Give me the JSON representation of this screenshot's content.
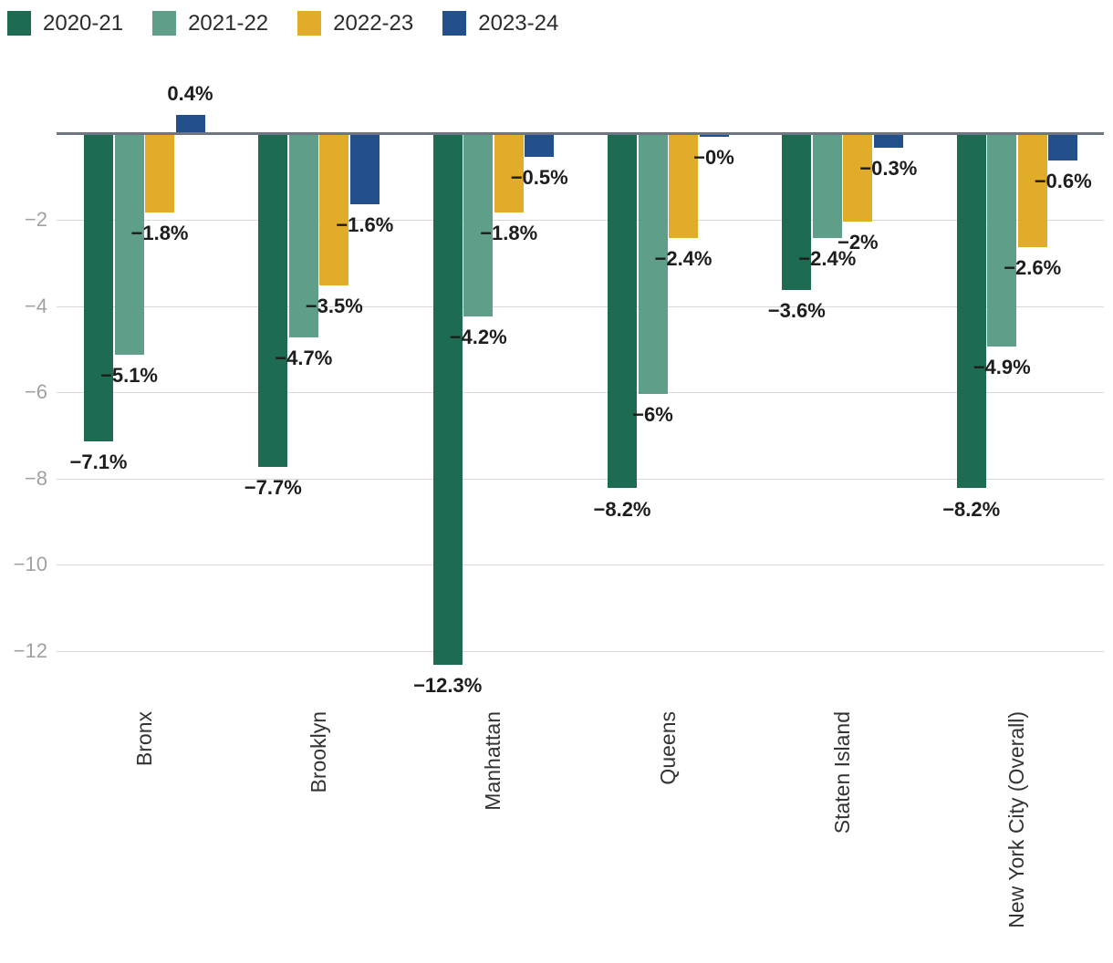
{
  "legend": {
    "items": [
      {
        "label": "2020-21",
        "color": "#1d6b52"
      },
      {
        "label": "2021-22",
        "color": "#5f9e88"
      },
      {
        "label": "2022-23",
        "color": "#e0ac29"
      },
      {
        "label": "2023-24",
        "color": "#23508b"
      }
    ]
  },
  "chart_data": {
    "type": "bar",
    "title": "",
    "xlabel": "",
    "ylabel": "",
    "categories": [
      "Bronx",
      "Brooklyn",
      "Manhattan",
      "Queens",
      "Staten Island",
      "New York City (Overall)"
    ],
    "series": [
      {
        "name": "2020-21",
        "color": "#1d6b52",
        "values": [
          -7.1,
          -7.7,
          -12.3,
          -8.2,
          -3.6,
          -8.2
        ],
        "labels": [
          "−7.1%",
          "−7.7%",
          "−12.3%",
          "−8.2%",
          "−3.6%",
          "−8.2%"
        ]
      },
      {
        "name": "2021-22",
        "color": "#5f9e88",
        "values": [
          -5.1,
          -4.7,
          -4.2,
          -6.0,
          -2.4,
          -4.9
        ],
        "labels": [
          "−5.1%",
          "−4.7%",
          "−4.2%",
          "−6%",
          "−2.4%",
          "−4.9%"
        ]
      },
      {
        "name": "2022-23",
        "color": "#e0ac29",
        "values": [
          -1.8,
          -3.5,
          -1.8,
          -2.4,
          -2.0,
          -2.6
        ],
        "labels": [
          "−1.8%",
          "−3.5%",
          "−1.8%",
          "−2.4%",
          "−2%",
          "−2.6%"
        ]
      },
      {
        "name": "2023-24",
        "color": "#23508b",
        "values": [
          0.4,
          -1.6,
          -0.5,
          0.0,
          -0.3,
          -0.6
        ],
        "labels": [
          "0.4%",
          "−1.6%",
          "−0.5%",
          "−0%",
          "−0.3%",
          "−0.6%"
        ]
      }
    ],
    "y_ticks": [
      {
        "value": -2,
        "label": "−2"
      },
      {
        "value": -4,
        "label": "−4"
      },
      {
        "value": -6,
        "label": "−6"
      },
      {
        "value": -8,
        "label": "−8"
      },
      {
        "value": -10,
        "label": "−10"
      },
      {
        "value": -12,
        "label": "−12"
      }
    ],
    "ylim": [
      -12.8,
      0.6
    ],
    "grid": true,
    "legend_position": "top-left",
    "value_label_format": "percent",
    "colors": {
      "zero_line": "#6e7781",
      "gridline": "#d8d8d8",
      "tick_label": "#a1a1a1",
      "value_label": "#1d1d1d",
      "category_label": "#333333"
    }
  }
}
